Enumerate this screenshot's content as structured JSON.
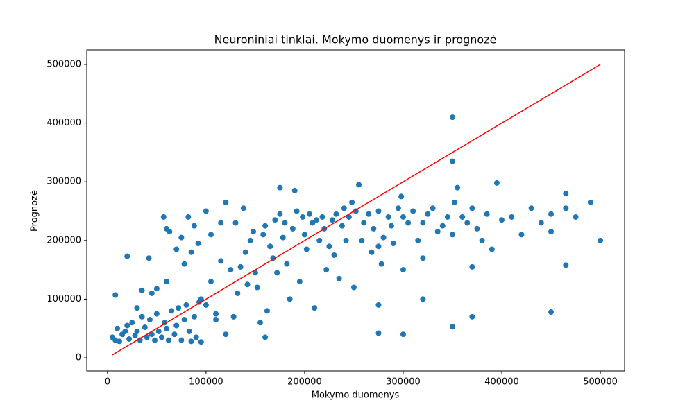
{
  "chart_data": {
    "type": "scatter",
    "title": "Neuroniniai tinklai. Mokymo duomenys ir prognozė",
    "x_label": "Mokymo duomenys",
    "y_label": "Prognozė",
    "xlim": [
      -21000,
      524600
    ],
    "ylim": [
      -22400,
      524800
    ],
    "xticks": [
      0,
      100000,
      200000,
      300000,
      400000,
      500000
    ],
    "yticks": [
      0,
      100000,
      200000,
      300000,
      400000,
      500000
    ],
    "grid": false,
    "series": [
      {
        "type": "scatter",
        "color": "#1f77b4",
        "x": [
          5000,
          8000,
          10000,
          12000,
          15000,
          18000,
          20000,
          22000,
          25000,
          28000,
          30000,
          33000,
          35000,
          38000,
          40000,
          43000,
          45000,
          48000,
          50000,
          52000,
          55000,
          58000,
          60000,
          62000,
          65000,
          68000,
          70000,
          72000,
          75000,
          78000,
          80000,
          83000,
          85000,
          88000,
          90000,
          93000,
          95000,
          30000,
          45000,
          60000,
          8000,
          20000,
          35000,
          42000,
          50000,
          57000,
          60000,
          63000,
          70000,
          75000,
          78000,
          82000,
          85000,
          88000,
          92000,
          95000,
          100000,
          105000,
          110000,
          115000,
          100000,
          105000,
          110000,
          115000,
          120000,
          120000,
          125000,
          128000,
          130000,
          132000,
          135000,
          138000,
          140000,
          142000,
          145000,
          148000,
          150000,
          152000,
          155000,
          158000,
          160000,
          160000,
          162000,
          165000,
          168000,
          170000,
          172000,
          175000,
          175000,
          178000,
          180000,
          182000,
          185000,
          188000,
          190000,
          192000,
          195000,
          198000,
          200000,
          202000,
          205000,
          208000,
          210000,
          212000,
          215000,
          218000,
          220000,
          222000,
          225000,
          228000,
          230000,
          232000,
          235000,
          238000,
          240000,
          242000,
          245000,
          248000,
          250000,
          252000,
          255000,
          258000,
          260000,
          265000,
          268000,
          270000,
          275000,
          275000,
          278000,
          280000,
          285000,
          288000,
          290000,
          295000,
          298000,
          300000,
          300000,
          305000,
          310000,
          315000,
          320000,
          320000,
          325000,
          330000,
          335000,
          340000,
          345000,
          350000,
          350000,
          350000,
          352000,
          355000,
          360000,
          365000,
          370000,
          370000,
          375000,
          380000,
          385000,
          390000,
          395000,
          400000,
          410000,
          420000,
          430000,
          440000,
          450000,
          450000,
          465000,
          465000,
          475000,
          490000,
          500000,
          370000,
          350000,
          320000,
          300000,
          275000,
          275000,
          450000,
          465000
        ],
        "values": [
          35000,
          30000,
          50000,
          28000,
          40000,
          45000,
          55000,
          32000,
          60000,
          38000,
          45000,
          30000,
          70000,
          52000,
          35000,
          65000,
          40000,
          30000,
          75000,
          45000,
          35000,
          60000,
          50000,
          30000,
          80000,
          40000,
          55000,
          85000,
          30000,
          65000,
          90000,
          45000,
          28000,
          70000,
          35000,
          95000,
          27000,
          85000,
          110000,
          130000,
          107000,
          173000,
          115000,
          170000,
          118000,
          240000,
          220000,
          215000,
          185000,
          205000,
          160000,
          240000,
          180000,
          225000,
          195000,
          100000,
          250000,
          210000,
          65000,
          230000,
          90000,
          130000,
          75000,
          165000,
          40000,
          265000,
          150000,
          70000,
          230000,
          110000,
          155000,
          255000,
          180000,
          125000,
          200000,
          215000,
          145000,
          120000,
          60000,
          210000,
          225000,
          35000,
          80000,
          190000,
          170000,
          235000,
          145000,
          245000,
          290000,
          205000,
          230000,
          160000,
          100000,
          220000,
          285000,
          250000,
          130000,
          240000,
          210000,
          185000,
          245000,
          230000,
          85000,
          235000,
          200000,
          240000,
          220000,
          150000,
          190000,
          235000,
          175000,
          245000,
          135000,
          225000,
          255000,
          200000,
          240000,
          265000,
          120000,
          250000,
          295000,
          200000,
          230000,
          245000,
          180000,
          220000,
          250000,
          90000,
          160000,
          205000,
          240000,
          225000,
          195000,
          255000,
          275000,
          150000,
          240000,
          230000,
          250000,
          200000,
          230000,
          100000,
          245000,
          255000,
          215000,
          225000,
          240000,
          410000,
          335000,
          210000,
          265000,
          290000,
          240000,
          230000,
          255000,
          155000,
          220000,
          200000,
          245000,
          185000,
          298000,
          235000,
          240000,
          210000,
          255000,
          230000,
          215000,
          245000,
          280000,
          255000,
          240000,
          265000,
          200000,
          70000,
          53000,
          170000,
          40000,
          42000,
          190000,
          78000,
          158000
        ]
      },
      {
        "type": "line",
        "color": "#ff0000",
        "x": [
          5000,
          500000
        ],
        "values": [
          5000,
          500000
        ]
      }
    ]
  }
}
